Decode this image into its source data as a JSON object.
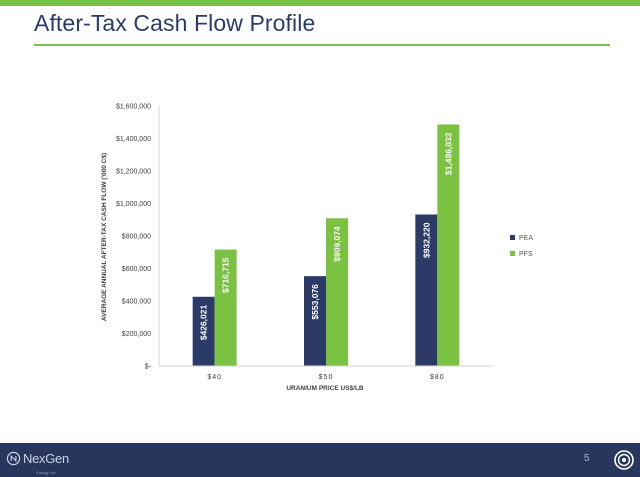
{
  "slide": {
    "title": "After-Tax Cash Flow Profile",
    "page_number": "5",
    "logo_text": "NexGen",
    "logo_subtext": "Energy Ltd."
  },
  "colors": {
    "accent_green": "#7cc242",
    "navy": "#27365c",
    "title_color": "#2a3c6b",
    "pea_bar": "#2b3a67",
    "pfs_bar": "#7cc242"
  },
  "chart_data": {
    "type": "bar",
    "title": "",
    "xlabel": "URANIUM PRICE US$/LB",
    "ylabel": "AVERAGE ANNUAL AFTER-TAX CASH FLOW ('000 C$)",
    "categories": [
      "$40",
      "$50",
      "$80"
    ],
    "series": [
      {
        "name": "PEA",
        "color": "#2b3a67",
        "values": [
          426021,
          553076,
          932220
        ],
        "labels": [
          "$426,021",
          "$553,076",
          "$932,220"
        ]
      },
      {
        "name": "PFS",
        "color": "#7cc242",
        "values": [
          716715,
          909074,
          1486033
        ],
        "labels": [
          "$716,715",
          "$909,074",
          "$1,486,033"
        ]
      }
    ],
    "ylim": [
      0,
      1600000
    ],
    "yticks": [
      0,
      200000,
      400000,
      600000,
      800000,
      1000000,
      1200000,
      1400000,
      1600000
    ],
    "ytick_labels": [
      "$-",
      "$200,000",
      "$400,000",
      "$600,000",
      "$800,000",
      "$1,000,000",
      "$1,200,000",
      "$1,400,000",
      "$1,600,000"
    ],
    "grid": false,
    "legend_position": "right"
  }
}
